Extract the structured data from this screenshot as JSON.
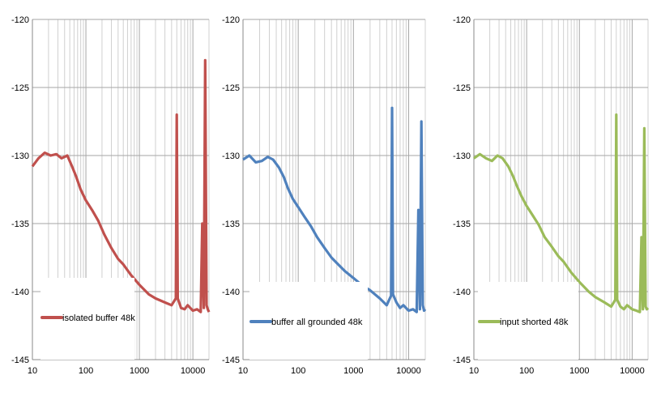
{
  "chart_data": [
    {
      "type": "line",
      "x_scale": "log",
      "xlim": [
        10,
        20000
      ],
      "ylim": [
        -145,
        -120
      ],
      "x_ticks": [
        "10",
        "100",
        "1000",
        "10000"
      ],
      "y_ticks": [
        "-120",
        "-125",
        "-130",
        "-135",
        "-140",
        "-145"
      ],
      "grid": true,
      "legend": "bottom-left",
      "series": [
        {
          "name": "isolated buffer 48k",
          "color": "#c0504d",
          "x": [
            10,
            13,
            17,
            22,
            28,
            35,
            45,
            55,
            65,
            80,
            100,
            130,
            170,
            220,
            300,
            400,
            500,
            700,
            1000,
            1500,
            2000,
            3000,
            4000,
            4800,
            5000,
            5200,
            6000,
            7000,
            8000,
            10000,
            12000,
            14000,
            15000,
            16000,
            17000,
            18000,
            19000,
            20000
          ],
          "y": [
            -130.8,
            -130.2,
            -129.8,
            -130.0,
            -129.9,
            -130.2,
            -130.0,
            -130.8,
            -131.5,
            -132.5,
            -133.3,
            -134.0,
            -134.8,
            -135.8,
            -136.8,
            -137.6,
            -138.0,
            -138.8,
            -139.5,
            -140.2,
            -140.5,
            -140.8,
            -141.0,
            -140.5,
            -127.0,
            -140.5,
            -141.2,
            -141.3,
            -141.0,
            -141.4,
            -141.3,
            -141.5,
            -135.0,
            -141.2,
            -123.0,
            -141.0,
            -141.3,
            -141.5
          ]
        }
      ]
    },
    {
      "type": "line",
      "x_scale": "log",
      "xlim": [
        10,
        20000
      ],
      "ylim": [
        -145,
        -120
      ],
      "x_ticks": [
        "10",
        "100",
        "1000",
        "10000"
      ],
      "y_ticks": [
        "-120",
        "-125",
        "-130",
        "-135",
        "-140",
        "-145"
      ],
      "grid": true,
      "legend": "bottom-left",
      "series": [
        {
          "name": "buffer all grounded 48k",
          "color": "#4f81bd",
          "x": [
            10,
            13,
            17,
            22,
            28,
            35,
            45,
            55,
            65,
            80,
            100,
            130,
            170,
            220,
            300,
            400,
            500,
            700,
            1000,
            1500,
            2000,
            3000,
            4000,
            4800,
            5000,
            5200,
            6000,
            7000,
            8000,
            10000,
            12000,
            14000,
            15000,
            16000,
            17000,
            18000,
            19000,
            20000
          ],
          "y": [
            -130.3,
            -130.0,
            -130.5,
            -130.4,
            -130.1,
            -130.3,
            -130.9,
            -131.6,
            -132.4,
            -133.2,
            -133.8,
            -134.5,
            -135.2,
            -136.0,
            -136.8,
            -137.5,
            -137.9,
            -138.5,
            -139.0,
            -139.6,
            -139.9,
            -140.5,
            -141.0,
            -140.3,
            -126.5,
            -140.2,
            -140.8,
            -141.2,
            -141.0,
            -141.4,
            -141.3,
            -141.5,
            -134.0,
            -141.3,
            -127.5,
            -141.0,
            -141.4,
            -141.3
          ]
        }
      ]
    },
    {
      "type": "line",
      "x_scale": "log",
      "xlim": [
        10,
        20000
      ],
      "ylim": [
        -145,
        -120
      ],
      "x_ticks": [
        "10",
        "100",
        "1000",
        "10000"
      ],
      "y_ticks": [
        "-120",
        "-125",
        "-130",
        "-135",
        "-140",
        "-145"
      ],
      "grid": true,
      "legend": "bottom-left",
      "series": [
        {
          "name": "input shorted 48k",
          "color": "#9bbb59",
          "x": [
            10,
            13,
            17,
            22,
            28,
            35,
            45,
            55,
            65,
            80,
            100,
            130,
            170,
            220,
            300,
            400,
            500,
            700,
            1000,
            1500,
            2000,
            3000,
            4000,
            4800,
            5000,
            5200,
            6000,
            7000,
            8000,
            10000,
            12000,
            14000,
            15000,
            16000,
            17000,
            18000,
            19000,
            20000
          ],
          "y": [
            -130.2,
            -129.9,
            -130.2,
            -130.4,
            -130.0,
            -130.2,
            -130.8,
            -131.5,
            -132.2,
            -133.0,
            -133.7,
            -134.4,
            -135.1,
            -136.0,
            -136.7,
            -137.4,
            -137.8,
            -138.6,
            -139.3,
            -140.0,
            -140.4,
            -140.8,
            -141.1,
            -140.6,
            -127.0,
            -140.6,
            -141.1,
            -141.3,
            -141.0,
            -141.3,
            -141.4,
            -141.5,
            -136.0,
            -141.3,
            -128.0,
            -141.1,
            -141.3,
            -141.2
          ]
        }
      ]
    }
  ]
}
